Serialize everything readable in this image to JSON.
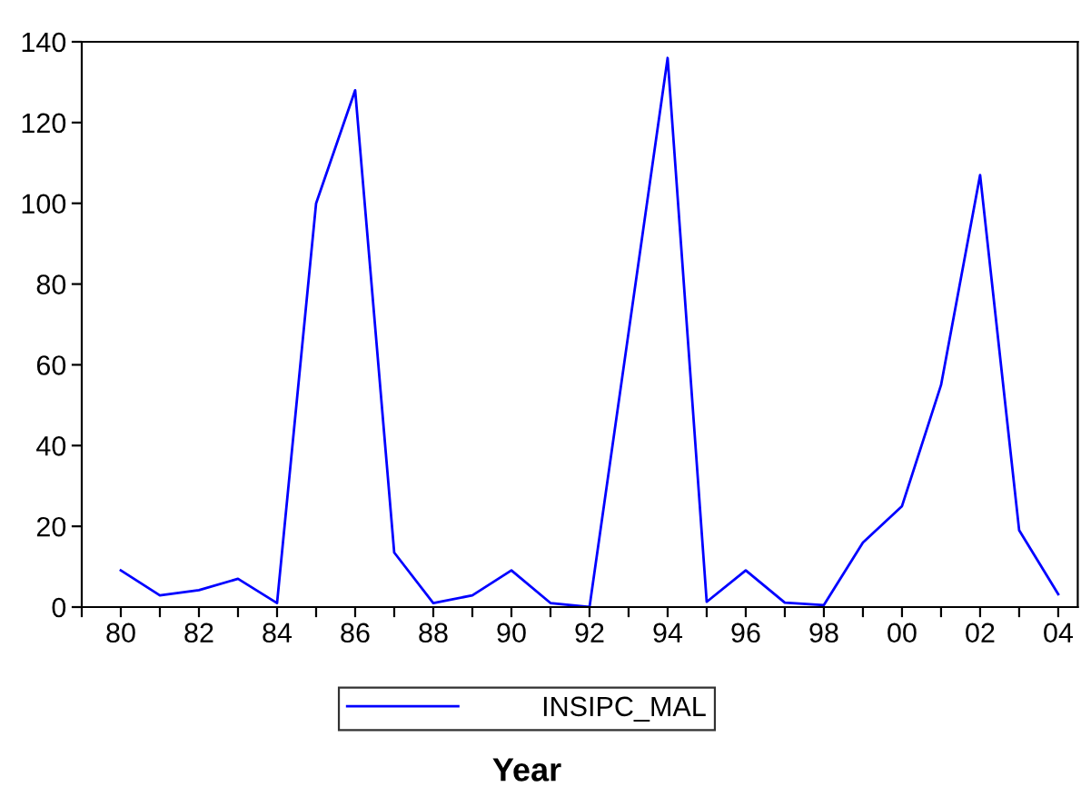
{
  "chart_data": {
    "type": "line",
    "xlabel": "Year",
    "x": [
      1980,
      1981,
      1982,
      1983,
      1984,
      1985,
      1986,
      1987,
      1988,
      1989,
      1990,
      1991,
      1992,
      1993,
      1994,
      1995,
      1996,
      1997,
      1998,
      1999,
      2000,
      2001,
      2002,
      2003,
      2004
    ],
    "series": [
      {
        "name": "INSIPC_MAL",
        "color": "#0000ff",
        "values": [
          9.1,
          2.9,
          4.2,
          7.0,
          1.0,
          100,
          128,
          13.5,
          1.0,
          2.9,
          9.1,
          1.0,
          0,
          68,
          136,
          1.3,
          9.1,
          1.1,
          0.5,
          16,
          25,
          55,
          107,
          19,
          3.2
        ]
      }
    ],
    "xlim": [
      1979,
      2004.5
    ],
    "xticks": [
      {
        "value": 1979,
        "label": null
      },
      {
        "value": 1980,
        "label": "80"
      },
      {
        "value": 1981,
        "label": null
      },
      {
        "value": 1982,
        "label": "82"
      },
      {
        "value": 1983,
        "label": null
      },
      {
        "value": 1984,
        "label": "84"
      },
      {
        "value": 1985,
        "label": null
      },
      {
        "value": 1986,
        "label": "86"
      },
      {
        "value": 1987,
        "label": null
      },
      {
        "value": 1988,
        "label": "88"
      },
      {
        "value": 1989,
        "label": null
      },
      {
        "value": 1990,
        "label": "90"
      },
      {
        "value": 1991,
        "label": null
      },
      {
        "value": 1992,
        "label": "92"
      },
      {
        "value": 1993,
        "label": null
      },
      {
        "value": 1994,
        "label": "94"
      },
      {
        "value": 1995,
        "label": null
      },
      {
        "value": 1996,
        "label": "96"
      },
      {
        "value": 1997,
        "label": null
      },
      {
        "value": 1998,
        "label": "98"
      },
      {
        "value": 1999,
        "label": null
      },
      {
        "value": 2000,
        "label": "00"
      },
      {
        "value": 2001,
        "label": null
      },
      {
        "value": 2002,
        "label": "02"
      },
      {
        "value": 2003,
        "label": null
      },
      {
        "value": 2004,
        "label": "04"
      }
    ],
    "ylim": [
      0,
      140
    ],
    "yticks": [
      0,
      20,
      40,
      60,
      80,
      100,
      120,
      140
    ],
    "grid": false,
    "legend": "bottom",
    "marker": "none",
    "line_style": "solid"
  }
}
